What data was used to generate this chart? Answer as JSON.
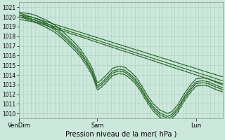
{
  "title": "",
  "xlabel": "Pression niveau de la mer( hPa )",
  "ylabel": "",
  "bg_color": "#cce8dc",
  "grid_color_major": "#aaccbb",
  "grid_color_minor": "#bbddcc",
  "line_color": "#1a5c1a",
  "ylim": [
    1009.5,
    1021.5
  ],
  "yticks": [
    1010,
    1011,
    1012,
    1013,
    1014,
    1015,
    1016,
    1017,
    1018,
    1019,
    1020,
    1021
  ],
  "xtick_labels": [
    "VenDim",
    "Sam",
    "Lun"
  ],
  "xtick_pos": [
    0.0,
    0.385,
    0.87
  ],
  "xlabel_fontsize": 7.0,
  "ytick_fontsize": 5.5,
  "xtick_fontsize": 6.0,
  "line_width": 0.7,
  "marker_size": 1.0,
  "straight_lines": [
    [
      1020.4,
      1013.8
    ],
    [
      1020.2,
      1013.4
    ],
    [
      1020.05,
      1013.1
    ]
  ],
  "wiggly_offsets": [
    0.5,
    0.2,
    0.0,
    -0.25
  ]
}
